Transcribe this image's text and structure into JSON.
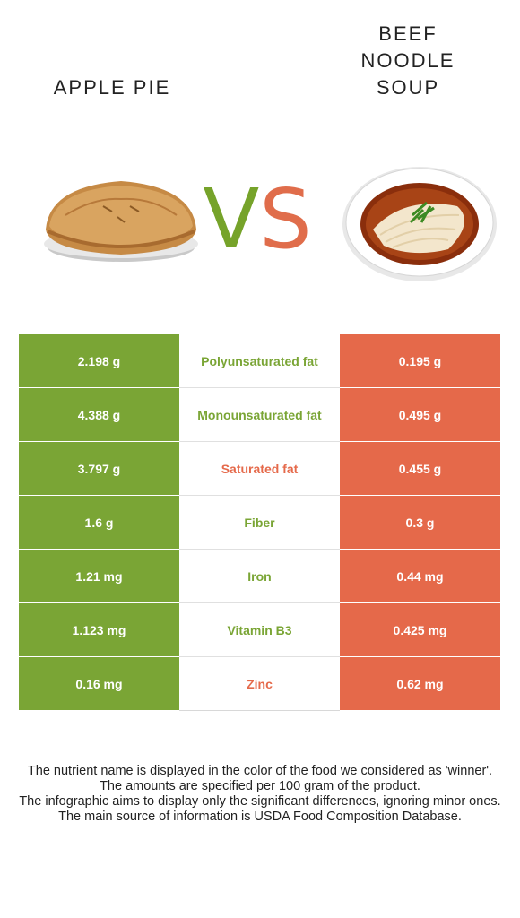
{
  "header": {
    "left_title": "APPLE PIE",
    "right_title_lines": [
      "BEEF",
      "NOODLE",
      "SOUP"
    ],
    "vs_v": "V",
    "vs_s": "S"
  },
  "colors": {
    "left_food": "#7aa535",
    "right_food": "#e5694a"
  },
  "images": {
    "left": "apple-pie-image",
    "right": "beef-noodle-soup-image"
  },
  "rows": [
    {
      "left": "2.198 g",
      "nutrient": "Polyunsaturated fat",
      "right": "0.195 g",
      "winner": "left"
    },
    {
      "left": "4.388 g",
      "nutrient": "Monounsaturated fat",
      "right": "0.495 g",
      "winner": "left"
    },
    {
      "left": "3.797 g",
      "nutrient": "Saturated fat",
      "right": "0.455 g",
      "winner": "right"
    },
    {
      "left": "1.6 g",
      "nutrient": "Fiber",
      "right": "0.3 g",
      "winner": "left"
    },
    {
      "left": "1.21 mg",
      "nutrient": "Iron",
      "right": "0.44 mg",
      "winner": "left"
    },
    {
      "left": "1.123 mg",
      "nutrient": "Vitamin B3",
      "right": "0.425 mg",
      "winner": "left"
    },
    {
      "left": "0.16 mg",
      "nutrient": "Zinc",
      "right": "0.62 mg",
      "winner": "right"
    }
  ],
  "footer": {
    "line1": "The nutrient name is displayed in the color of the food we considered as 'winner'.",
    "line2": "The amounts are specified per 100 gram of the product.",
    "line3": "The infographic aims to display only the significant differences, ignoring minor ones.",
    "line4": "The main source of information is USDA Food Composition Database."
  }
}
